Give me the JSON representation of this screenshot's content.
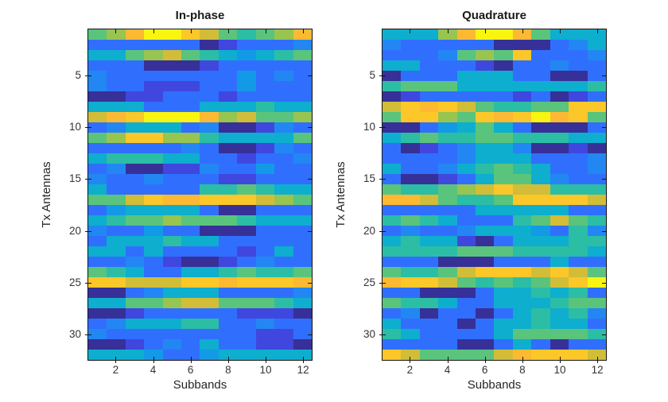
{
  "figure": {
    "background": "#ffffff",
    "colormap_name": "parula",
    "colormap_stops": [
      [
        0.0,
        "#352a87"
      ],
      [
        0.1,
        "#3f47de"
      ],
      [
        0.2,
        "#326cfe"
      ],
      [
        0.3,
        "#1e8ef0"
      ],
      [
        0.4,
        "#06a6de"
      ],
      [
        0.5,
        "#1bb9b7"
      ],
      [
        0.6,
        "#46c38b"
      ],
      [
        0.7,
        "#87c658"
      ],
      [
        0.78,
        "#cabe39"
      ],
      [
        0.85,
        "#fdb732"
      ],
      [
        0.92,
        "#fbcd24"
      ],
      [
        1.0,
        "#f9fb0e"
      ]
    ],
    "axis_color": "#141414",
    "label_color": "#262626",
    "tick_label_color": "#333333"
  },
  "chart_data": [
    {
      "type": "heatmap",
      "title": "In-phase",
      "xlabel": "Subbands",
      "ylabel": "Tx Antennas",
      "x_ticks": [
        2,
        4,
        6,
        8,
        10,
        12
      ],
      "y_ticks": [
        5,
        10,
        15,
        20,
        25,
        30
      ],
      "n_rows": 32,
      "n_cols": 12,
      "value_scale": "normalized colormap position 0-1, letter-coded per cell",
      "code_values": {
        "N": 0.02,
        "D": 0.1,
        "B": 0.21,
        "b": 0.28,
        "C": 0.35,
        "c": 0.44,
        "T": 0.54,
        "G": 0.63,
        "g": 0.72,
        "O": 0.79,
        "o": 0.855,
        "Y": 0.9,
        "y": 0.99
      },
      "row_codes": [
        "GgoyyYOGTGgo",
        "BBBBBBNDBBBb",
        "ccGgOGTcCcTG",
        "BBBNNNDBBBBB",
        "bBBBBBBBCBbB",
        "bBBDDDBBCBBB",
        "NNDDBBBDBBBB",
        "cccBBBcccTcc",
        "OoYyyyogOGGg",
        "BbcccBbNNDbB",
        "GgYYggTccccG",
        "BBBBBbBNNDbB",
        "cTTTccBBDBBb",
        "BbNNDDbBBCBB",
        "bBBbBBBDDBBB",
        "cBBBBBTTGTcc",
        "GGOYooYYYOgG",
        "BCccccBNNBBB",
        "cTGGgGGGTccc",
        "bBBCBBNNNBBB",
        "BcccTccBBBBB",
        "ccBcBBBBDBcB",
        "BBbBDNNDBbBB",
        "GTcBBccTGTTG",
        "YYOOOYYoYYYo",
        "NNBbcccBBBBb",
        "ccGGgOOGGGTc",
        "NNDBBBBBDDDN",
        "BbcccTTBBbBB",
        "bBBBBBBBBDDB",
        "NNDBbBcBBDDN",
        "cccCBBCccccc"
      ]
    },
    {
      "type": "heatmap",
      "title": "Quadrature",
      "xlabel": "Subbands",
      "ylabel": "Tx Antennas",
      "x_ticks": [
        2,
        4,
        6,
        8,
        10,
        12
      ],
      "y_ticks": [
        5,
        10,
        15,
        20,
        25,
        30
      ],
      "n_rows": 32,
      "n_cols": 12,
      "value_scale": "normalized colormap position 0-1, letter-coded per cell",
      "code_values": {
        "N": 0.02,
        "D": 0.1,
        "B": 0.21,
        "b": 0.28,
        "C": 0.35,
        "c": 0.44,
        "T": 0.54,
        "G": 0.63,
        "g": 0.72,
        "O": 0.79,
        "o": 0.855,
        "Y": 0.9,
        "y": 0.99
      },
      "row_codes": [
        "cccgoyyoGccc",
        "bBBBBBNNNBbc",
        "BBBbGgGYBBBb",
        "ccBBBDNBBbBB",
        "NBBBcccBBNNB",
        "TGGGcccccccT",
        "NDBBBBBDBNDB",
        "OYoYOGTTGGYY",
        "GYYgGYoYyoYG",
        "NNBCcGcBNNNB",
        "cTGTTGGTTTcc",
        "BNDBbccbNNDN",
        "BBBBbcccBBBb",
        "cBBbcTGTcBBb",
        "BNNDBcGGcbBB",
        "GTTGgOYOOTTT",
        "ooOGTTGYYYYO",
        "BBBBBcccccBB",
        "TGTcBBBTGOGT",
        "BbBBbcccCBTb",
        "cTccDNBcccTT",
        "TTTTGGGTTTTc",
        "BBBNNNBBBcBB",
        "GTTGOYYYOYOG",
        "oYYOGTGTGOYy",
        "BBNNNBccTcTB",
        "GTTcBBcccTGG",
        "BbNBBNBcTcTb",
        "cBBBNBccTccB",
        "TcBBBBcGGGGT",
        "BBBBNNBcBNBB",
        "YOGGGGOoYYYO"
      ]
    }
  ]
}
